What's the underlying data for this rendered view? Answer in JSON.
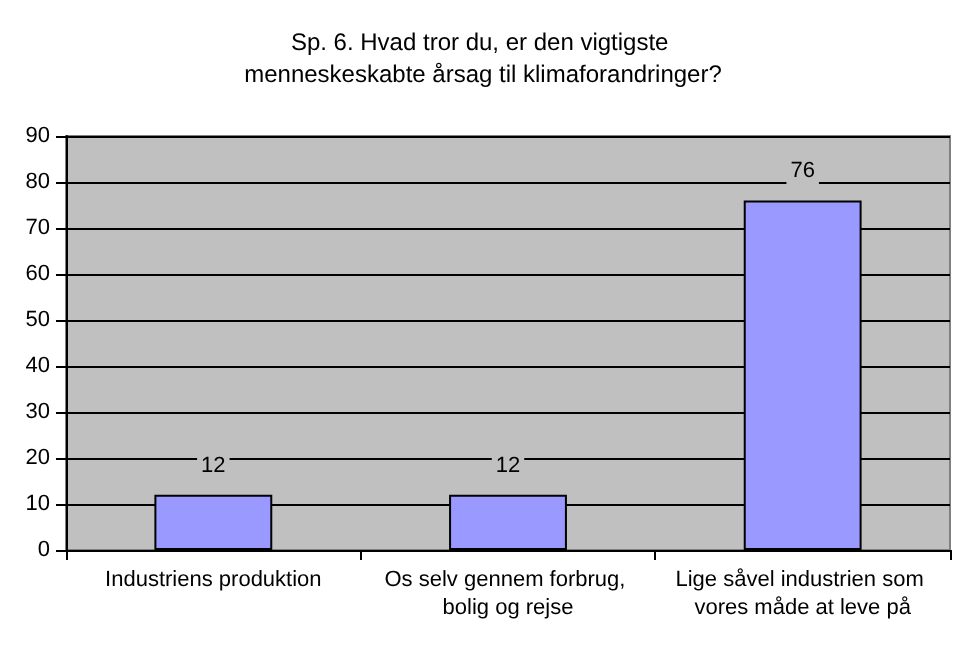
{
  "chart_data": {
    "type": "bar",
    "title": "Sp. 6. Hvad tror du, er den vigtigste menneskeskabte årsag til klimaforandringer?",
    "categories": [
      "Industriens produktion",
      "Os selv gennem forbrug, bolig og rejse",
      "Lige såvel industrien som vores måde at leve på"
    ],
    "values": [
      12,
      12,
      76
    ],
    "color": "#9999ff",
    "ylim": [
      0,
      90
    ],
    "yticks": [
      0,
      10,
      20,
      30,
      40,
      50,
      60,
      70,
      80,
      90
    ],
    "grid": "y",
    "data_labels": true
  }
}
